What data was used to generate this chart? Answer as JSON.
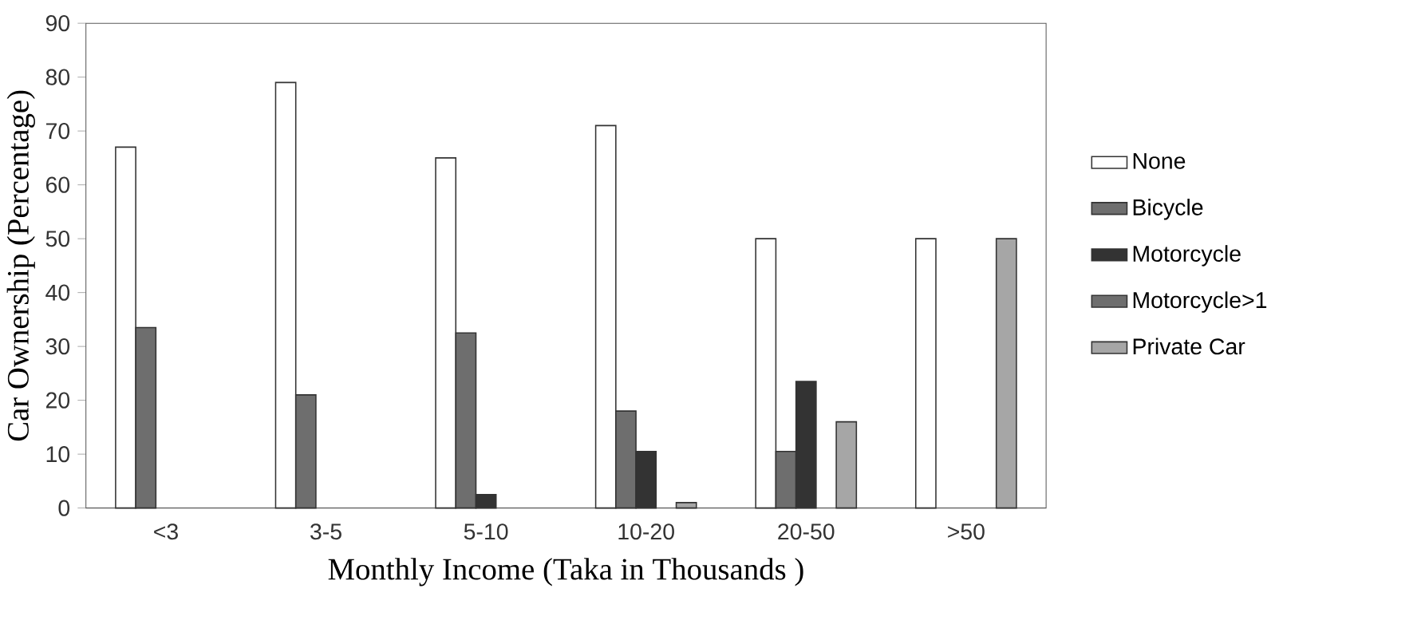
{
  "chart_data": {
    "type": "bar",
    "xlabel": "Monthly Income (Taka in Thousands )",
    "ylabel": "Car Ownership (Percentage)",
    "categories": [
      "<3",
      "3-5",
      "5-10",
      "10-20",
      "20-50",
      ">50"
    ],
    "series": [
      {
        "name": "None",
        "color": "#ffffff",
        "values": [
          67,
          79,
          65,
          71,
          50,
          50
        ]
      },
      {
        "name": "Bicycle",
        "color": "#6e6e6e",
        "values": [
          33.5,
          21,
          32.5,
          18,
          10.5,
          null
        ]
      },
      {
        "name": "Motorcycle",
        "color": "#333333",
        "values": [
          null,
          null,
          2.5,
          10.5,
          23.5,
          null
        ]
      },
      {
        "name": "Motorcycle>1",
        "color": "#6e6e6e",
        "values": [
          null,
          null,
          null,
          null,
          null,
          null
        ]
      },
      {
        "name": "Private Car",
        "color": "#a6a6a6",
        "values": [
          null,
          null,
          null,
          1,
          16,
          50
        ]
      }
    ],
    "ylim": [
      0,
      90
    ],
    "yticks": [
      0,
      10,
      20,
      30,
      40,
      50,
      60,
      70,
      80,
      90
    ],
    "legend": "right",
    "grid": false
  }
}
